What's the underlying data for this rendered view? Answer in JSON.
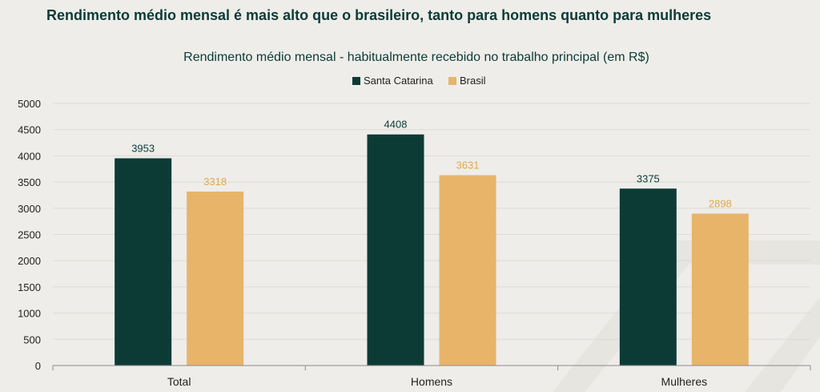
{
  "headline": "Rendimento médio mensal é mais alto que o brasileiro, tanto para homens quanto para mulheres",
  "colors": {
    "background": "#eeede9",
    "santa_catarina": "#0c3b36",
    "brasil": "#e8b46a",
    "title": "#0c3b36",
    "brasil_label": "#e0a84e"
  },
  "chart_data": {
    "type": "bar",
    "title": "Rendimento médio mensal - habitualmente recebido no trabalho principal (em R$)",
    "categories": [
      "Total",
      "Homens",
      "Mulheres"
    ],
    "series": [
      {
        "name": "Santa Catarina",
        "values": [
          3953,
          4408,
          3375
        ]
      },
      {
        "name": "Brasil",
        "values": [
          3318,
          3631,
          2898
        ]
      }
    ],
    "ylim": [
      0,
      5000
    ],
    "yticks": [
      "0",
      "500",
      "1000",
      "1500",
      "2000",
      "2500",
      "3000",
      "3500",
      "4000",
      "4500",
      "5000"
    ],
    "xlabel": "",
    "ylabel": "",
    "grid": true,
    "legend_position": "top-center"
  }
}
